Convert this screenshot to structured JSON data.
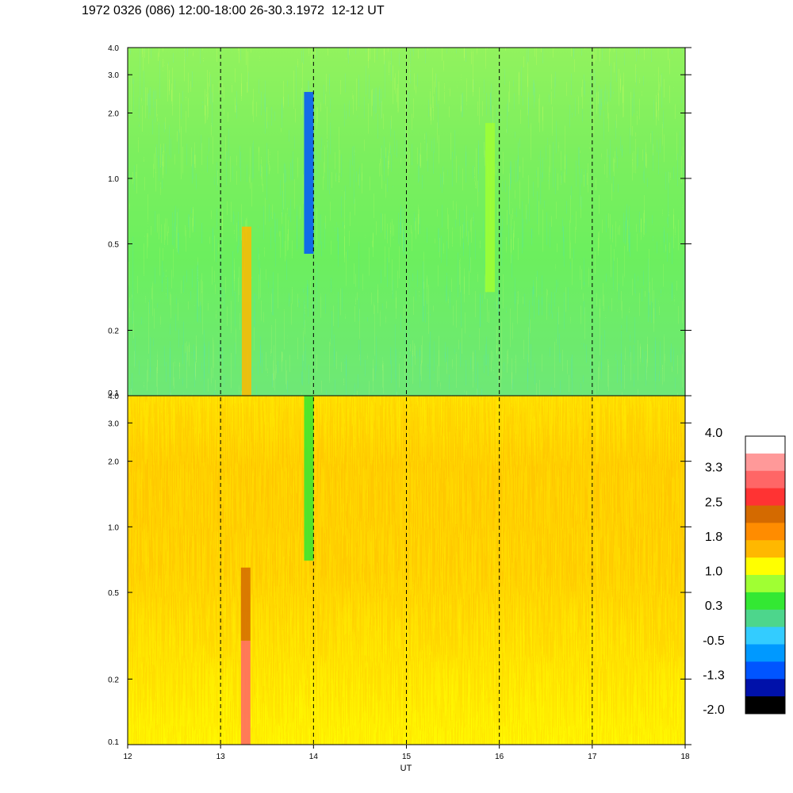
{
  "title": "1972 0326 (086) 12:00-18:00 26-30.3.1972  12-12 UT",
  "chart_data": {
    "type": "heatmap",
    "title": "1972 0326 (086) 12:00-18:00 26-30.3.1972  12-12 UT",
    "xlabel": "UT",
    "x_ticks": [
      "12",
      "13",
      "14",
      "15",
      "16",
      "17",
      "18"
    ],
    "x_range": [
      12,
      18
    ],
    "y_scale": "log",
    "y_range": [
      0.1,
      4.0
    ],
    "y_ticks": [
      "0.1",
      "0.2",
      "0.5",
      "1.0",
      "2.0",
      "3.0",
      "4.0"
    ],
    "dashed_hour_lines": [
      13,
      14,
      15,
      16,
      17
    ],
    "panels": [
      {
        "name": "upper",
        "dominant_level": 0.3,
        "features": [
          {
            "x": 13.28,
            "from": 0.1,
            "to": 0.6,
            "level": 1.8
          },
          {
            "x": 13.95,
            "from": 0.45,
            "to": 2.5,
            "level": -1.3
          },
          {
            "x": 15.9,
            "from": 0.3,
            "to": 1.8,
            "level": 1.0
          }
        ]
      },
      {
        "name": "lower",
        "dominant_level": 1.4,
        "features": [
          {
            "x": 13.27,
            "from": 0.1,
            "to": 0.3,
            "level": 3.3
          },
          {
            "x": 13.27,
            "from": 0.3,
            "to": 0.65,
            "level": 2.5
          },
          {
            "x": 13.95,
            "from": 0.7,
            "to": 4.0,
            "level": 0.3
          }
        ]
      }
    ],
    "colorbar": {
      "labels": [
        "4.0",
        "3.3",
        "2.5",
        "1.8",
        "1.0",
        "0.3",
        "-0.5",
        "-1.3",
        "-2.0"
      ],
      "colors": [
        "#ffffff",
        "#ff9999",
        "#ff6666",
        "#ff3333",
        "#d46a00",
        "#ff8c00",
        "#ffb800",
        "#ffff00",
        "#a0ff33",
        "#33e833",
        "#4dd68c",
        "#33ccff",
        "#0099ff",
        "#0055ff",
        "#0011aa",
        "#000000"
      ]
    }
  }
}
